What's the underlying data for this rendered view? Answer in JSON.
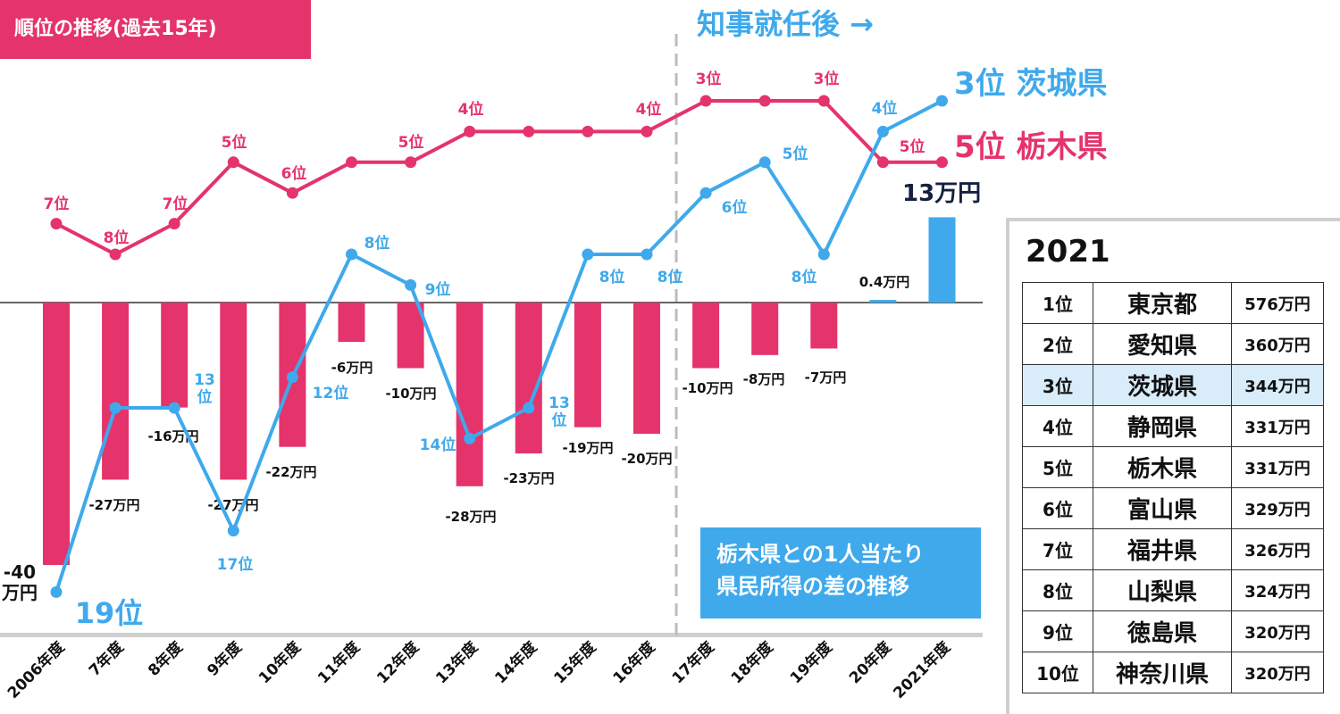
{
  "header": {
    "title": "順位の推移(過去15年)",
    "after_governor": "知事就任後 →"
  },
  "legend": {
    "ibaraki": "3位 茨城県",
    "tochigi": "5位 栃木県"
  },
  "gap_label": "13万円",
  "info_box": {
    "line1": "栃木県との1人当たり",
    "line2": "県民所得の差の推移"
  },
  "colors": {
    "ibaraki": "#3fa9ec",
    "tochigi": "#e5336b",
    "text_dark": "#16213e"
  },
  "chart_data": {
    "type": "line",
    "categories": [
      "2006年度",
      "7年度",
      "8年度",
      "9年度",
      "10年度",
      "11年度",
      "12年度",
      "13年度",
      "14年度",
      "15年度",
      "16年度",
      "17年度",
      "18年度",
      "19年度",
      "20年度",
      "2021年度"
    ],
    "series": [
      {
        "name": "茨城県",
        "kind": "line",
        "color": "#3fa9ec",
        "values": [
          19,
          13,
          13,
          17,
          12,
          8,
          9,
          14,
          13,
          8,
          8,
          6,
          5,
          8,
          4,
          3
        ],
        "labels": [
          "19位",
          "13\n位",
          "",
          "17位",
          "12位",
          "8位",
          "9位",
          "14位",
          "13\n位",
          "8位",
          "8位",
          "6位",
          "5位",
          "8位",
          "4位",
          ""
        ]
      },
      {
        "name": "栃木県",
        "kind": "line",
        "color": "#e5336b",
        "values": [
          7,
          8,
          7,
          5,
          6,
          5,
          5,
          4,
          4,
          4,
          4,
          3,
          3,
          3,
          5,
          5
        ],
        "labels": [
          "7位",
          "8位",
          "7位",
          "5位",
          "6位",
          "",
          "5位",
          "4位",
          "",
          "",
          "4位",
          "3位",
          "",
          "3位",
          "5位",
          ""
        ]
      },
      {
        "name": "栃木県との1人当たり県民所得の差",
        "kind": "bar",
        "color_negative": "#e5336b",
        "color_positive": "#3fa9ec",
        "values": [
          -40,
          -27,
          -16,
          -27,
          -22,
          -6,
          -10,
          -28,
          -23,
          -19,
          -20,
          -10,
          -8,
          -7,
          0.4,
          13
        ],
        "labels": [
          "-40\n万円",
          "-27万円",
          "-16万円",
          "-27万円",
          "-22万円",
          "-6万円",
          "-10万円",
          "-28万円",
          "-23万円",
          "-19万円",
          "-20万円",
          "-10万円",
          "-8万円",
          "-7万円",
          "0.4万円",
          ""
        ]
      }
    ],
    "rank_axis": {
      "top_rank": 3,
      "bottom_rank": 19,
      "inverted": true
    },
    "gap_axis": {
      "range": [
        -40,
        13
      ],
      "baseline": 0
    },
    "governor_divider_between": [
      "16年度",
      "17年度"
    ],
    "grid": false
  },
  "ranking": {
    "year": "2021",
    "rows": [
      {
        "rank": "1位",
        "pref": "東京都",
        "income": "576万円"
      },
      {
        "rank": "2位",
        "pref": "愛知県",
        "income": "360万円"
      },
      {
        "rank": "3位",
        "pref": "茨城県",
        "income": "344万円"
      },
      {
        "rank": "4位",
        "pref": "静岡県",
        "income": "331万円"
      },
      {
        "rank": "5位",
        "pref": "栃木県",
        "income": "331万円"
      },
      {
        "rank": "6位",
        "pref": "富山県",
        "income": "329万円"
      },
      {
        "rank": "7位",
        "pref": "福井県",
        "income": "326万円"
      },
      {
        "rank": "8位",
        "pref": "山梨県",
        "income": "324万円"
      },
      {
        "rank": "9位",
        "pref": "徳島県",
        "income": "320万円"
      },
      {
        "rank": "10位",
        "pref": "神奈川県",
        "income": "320万円"
      }
    ],
    "highlight_index": 2
  }
}
